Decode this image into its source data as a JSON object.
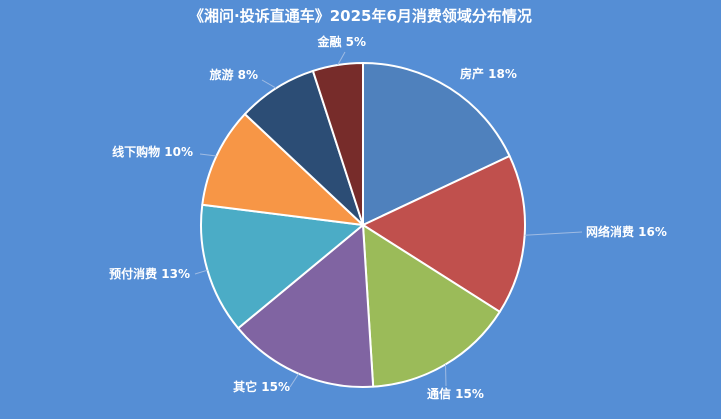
{
  "chart_data": {
    "type": "pie",
    "title": "《湘问·投诉直通车》2025年6月消费领域分布情况",
    "slices": [
      {
        "label": "房产",
        "value": 18,
        "display": "房产 18%",
        "color": "#4F81BD"
      },
      {
        "label": "网络消费",
        "value": 16,
        "display": "网络消费 16%",
        "color": "#C0504D"
      },
      {
        "label": "通信",
        "value": 15,
        "display": "通信 15%",
        "color": "#9BBB59"
      },
      {
        "label": "其它",
        "value": 15,
        "display": "其它 15%",
        "color": "#8064A2"
      },
      {
        "label": "预付消费",
        "value": 13,
        "display": "预付消费 13%",
        "color": "#4BACC6"
      },
      {
        "label": "线下购物",
        "value": 10,
        "display": "线下购物 10%",
        "color": "#F79646"
      },
      {
        "label": "旅游",
        "value": 8,
        "display": "旅游 8%",
        "color": "#2C4D75"
      },
      {
        "label": "金融",
        "value": 5,
        "display": "金融 5%",
        "color": "#772C2A"
      }
    ],
    "legend": "none",
    "data_labels": "outside"
  }
}
